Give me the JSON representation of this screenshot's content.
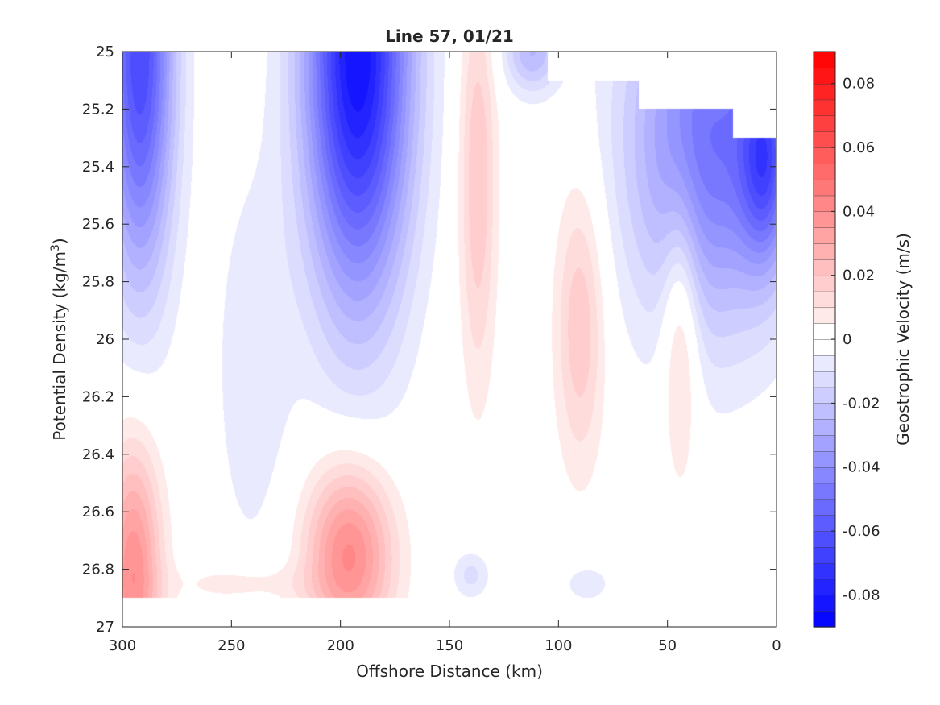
{
  "chart_data": {
    "type": "heatmap",
    "title": "Line 57, 01/21",
    "xlabel": "Offshore Distance (km)",
    "ylabel_main": "Potential Density (kg/m",
    "ylabel_sup": "3",
    "ylabel_close": ")",
    "colorbar_label": "Geostrophic Velocity (m/s)",
    "xlim": [
      300,
      0
    ],
    "xaxis_reversed": true,
    "ylim": [
      25,
      27
    ],
    "yaxis_reversed": true,
    "xticks": [
      300,
      250,
      200,
      150,
      100,
      50,
      0
    ],
    "xtick_labels": [
      "300",
      "250",
      "200",
      "150",
      "100",
      "50",
      "0"
    ],
    "yticks": [
      25,
      25.2,
      25.4,
      25.6,
      25.8,
      26,
      26.2,
      26.4,
      26.6,
      26.8,
      27
    ],
    "ytick_labels": [
      "25",
      "25.2",
      "25.4",
      "25.6",
      "25.8",
      "26",
      "26.2",
      "26.4",
      "26.6",
      "26.8",
      "27"
    ],
    "colorbar": {
      "clim": [
        -0.09,
        0.09
      ],
      "levels": 36,
      "ticks": [
        0.08,
        0.06,
        0.04,
        0.02,
        0,
        -0.02,
        -0.04,
        -0.06,
        -0.08
      ],
      "tick_labels": [
        "0.08",
        "0.06",
        "0.04",
        "0.02",
        "0",
        "-0.02",
        "-0.04",
        "-0.06",
        "-0.08"
      ],
      "colormap": "blue-white-red",
      "negative_color": "#0000ff",
      "zero_color": "#ffffff",
      "positive_color": "#ff0000"
    },
    "grid": false,
    "features": [
      {
        "kind": "negative",
        "x": 292,
        "y": 25.0,
        "sx": 11,
        "sy": 0.55,
        "amp": -0.065
      },
      {
        "kind": "negative",
        "x": 192,
        "y": 25.0,
        "sx": 17,
        "sy": 0.6,
        "amp": -0.085
      },
      {
        "kind": "negative",
        "x": 30,
        "y": 25.3,
        "sx": 26,
        "sy": 0.45,
        "amp": -0.05
      },
      {
        "kind": "negative",
        "x": 5,
        "y": 25.38,
        "sx": 8,
        "sy": 0.25,
        "amp": -0.04
      },
      {
        "kind": "negative",
        "x": 112,
        "y": 25.0,
        "sx": 9,
        "sy": 0.1,
        "amp": -0.025
      },
      {
        "kind": "negative",
        "x": 240,
        "y": 26.1,
        "sx": 13,
        "sy": 0.5,
        "amp": -0.009
      },
      {
        "kind": "negative",
        "x": 140,
        "y": 26.82,
        "sx": 6,
        "sy": 0.06,
        "amp": -0.012
      },
      {
        "kind": "negative",
        "x": 87,
        "y": 26.85,
        "sx": 8,
        "sy": 0.05,
        "amp": -0.009
      },
      {
        "kind": "positive",
        "x": 295,
        "y": 26.82,
        "sx": 9,
        "sy": 0.32,
        "amp": 0.04
      },
      {
        "kind": "positive",
        "x": 196,
        "y": 26.75,
        "sx": 14,
        "sy": 0.22,
        "amp": 0.042
      },
      {
        "kind": "positive",
        "x": 137,
        "y": 25.45,
        "sx": 6,
        "sy": 0.5,
        "amp": 0.02
      },
      {
        "kind": "positive",
        "x": 90,
        "y": 25.95,
        "sx": 8,
        "sy": 0.35,
        "amp": 0.02
      },
      {
        "kind": "positive",
        "x": 44,
        "y": 25.95,
        "sx": 6,
        "sy": 0.35,
        "amp": 0.02
      },
      {
        "kind": "positive",
        "x": 245,
        "y": 26.85,
        "sx": 20,
        "sy": 0.05,
        "amp": 0.009
      }
    ],
    "data_mask": {
      "bottom_density": 26.9,
      "top_edge_steps": [
        {
          "x_from": 300,
          "x_to": 105,
          "top": 25.0
        },
        {
          "x_from": 105,
          "x_to": 63,
          "top": 25.1
        },
        {
          "x_from": 63,
          "x_to": 20,
          "top": 25.2
        },
        {
          "x_from": 20,
          "x_to": 0,
          "top": 25.3
        }
      ]
    }
  }
}
